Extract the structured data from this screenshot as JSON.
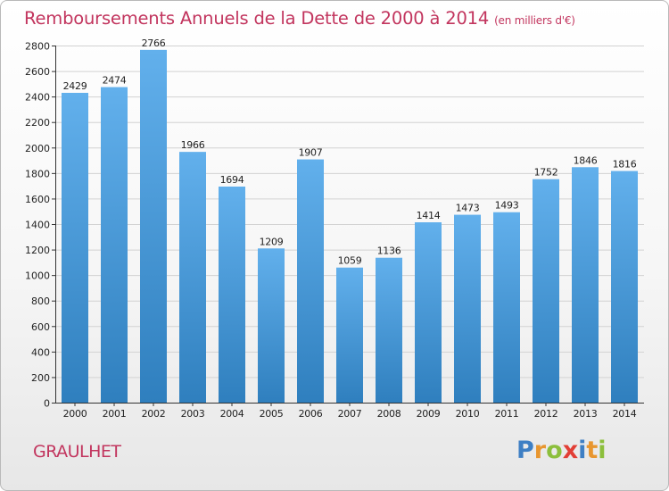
{
  "title": "Remboursements Annuels de la Dette de 2000 à 2014",
  "unit": "(en milliers d'€)",
  "city": "GRAULHET",
  "logo": {
    "text": "Proxiti",
    "letters": [
      {
        "ch": "P",
        "color": "#3e7fc4"
      },
      {
        "ch": "r",
        "color": "#e8962f"
      },
      {
        "ch": "o",
        "color": "#8cbf3c"
      },
      {
        "ch": "x",
        "color": "#e23f36"
      },
      {
        "ch": "i",
        "color": "#3e7fc4"
      },
      {
        "ch": "t",
        "color": "#e8962f"
      },
      {
        "ch": "i",
        "color": "#8cbf3c"
      }
    ]
  },
  "colors": {
    "bar_top": "#62b0ec",
    "bar_bottom": "#2f7fbe",
    "title": "#c2355e",
    "grid": "#d2d2d2",
    "axis": "#333333"
  },
  "chart_data": {
    "type": "bar",
    "title": "Remboursements Annuels de la Dette de 2000 à 2014",
    "categories": [
      "2000",
      "2001",
      "2002",
      "2003",
      "2004",
      "2005",
      "2006",
      "2007",
      "2008",
      "2009",
      "2010",
      "2011",
      "2012",
      "2013",
      "2014"
    ],
    "values": [
      2429,
      2474,
      2766,
      1966,
      1694,
      1209,
      1907,
      1059,
      1136,
      1414,
      1473,
      1493,
      1752,
      1846,
      1816
    ],
    "ylim": [
      0,
      2800
    ],
    "yticks": [
      0,
      200,
      400,
      600,
      800,
      1000,
      1200,
      1400,
      1600,
      1800,
      2000,
      2200,
      2400,
      2600,
      2800
    ],
    "grid": true,
    "legend": "none"
  }
}
